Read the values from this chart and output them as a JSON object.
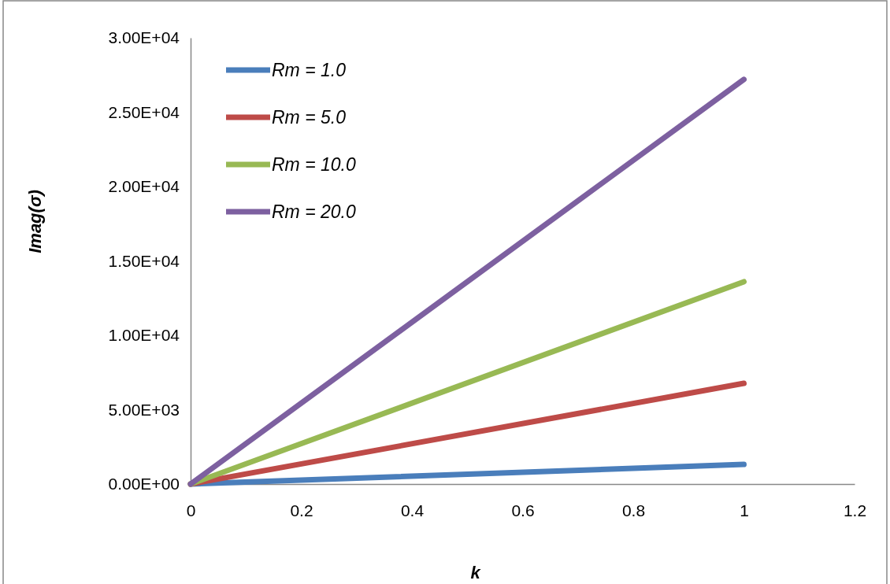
{
  "chart_data": {
    "type": "line",
    "xlabel": "k",
    "ylabel": "Imag(σ)",
    "x": [
      0,
      1
    ],
    "xlim": [
      0,
      1.2
    ],
    "xticks": [
      0,
      0.2,
      0.4,
      0.6,
      0.8,
      1,
      1.2
    ],
    "ylim": [
      0,
      30000
    ],
    "yticks": [
      {
        "value": 0,
        "label": "0.00E+00"
      },
      {
        "value": 5000,
        "label": "5.00E+03"
      },
      {
        "value": 10000,
        "label": "1.00E+04"
      },
      {
        "value": 15000,
        "label": "1.50E+04"
      },
      {
        "value": 20000,
        "label": "2.00E+04"
      },
      {
        "value": 25000,
        "label": "2.50E+04"
      },
      {
        "value": 30000,
        "label": "3.00E+04"
      }
    ],
    "grid": false,
    "legend": "top left",
    "marker": "none",
    "line_style": "solid",
    "series": [
      {
        "name": "Rm = 1.0",
        "color": "#4a7ebb",
        "values": [
          0,
          1320
        ]
      },
      {
        "name": "Rm = 5.0",
        "color": "#be4b48",
        "values": [
          0,
          6770
        ]
      },
      {
        "name": "Rm = 10.0",
        "color": "#98b954",
        "values": [
          0,
          13600
        ]
      },
      {
        "name": "Rm = 20.0",
        "color": "#7d60a0",
        "values": [
          0,
          27200
        ]
      }
    ]
  }
}
